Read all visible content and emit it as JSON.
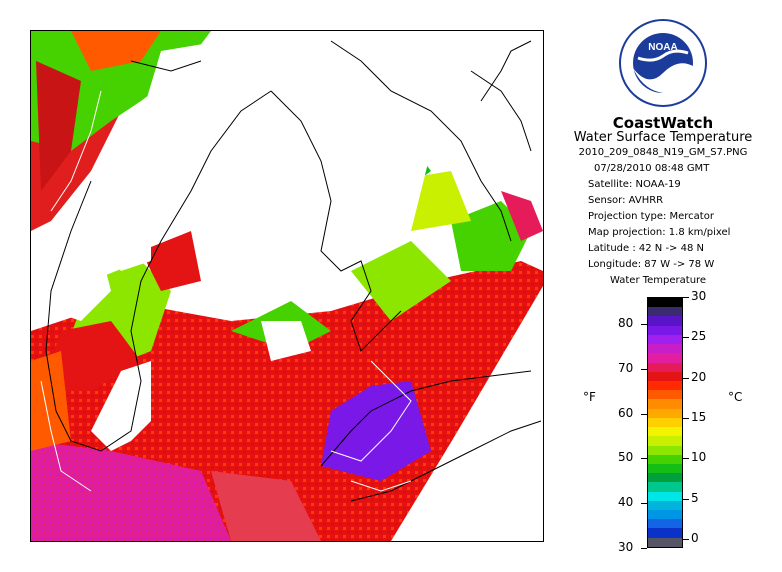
{
  "brand": "CoastWatch",
  "product": "Water Surface Temperature",
  "filename": "2010_209_0848_N19_GM_S7.PNG",
  "datetime": "07/28/2010    08:48 GMT",
  "satellite": "Satellite: NOAA-19",
  "sensor": "Sensor: AVHRR",
  "projection_type": "Projection type:  Mercator",
  "map_projection": "Map projection: 1.8 km/pixel",
  "latitude": "Latitude : 42 N -> 48 N",
  "longitude": "Longitude: 87 W -> 78 W",
  "legend": {
    "title": "Water Temperature",
    "unit_f": "°F",
    "unit_c": "°C",
    "ticks_f": [
      "30",
      "40",
      "50",
      "60",
      "70",
      "80"
    ],
    "ticks_c": [
      "0",
      "5",
      "10",
      "15",
      "20",
      "25",
      "30"
    ],
    "colors": [
      "#000000",
      "#3a2a6e",
      "#5a14c8",
      "#7a18e8",
      "#a020f0",
      "#c81ec8",
      "#e41ea0",
      "#e61c5a",
      "#e41414",
      "#ff2a00",
      "#ff5a00",
      "#ff8c00",
      "#ffa800",
      "#ffd000",
      "#f4f400",
      "#c8f000",
      "#8ce600",
      "#46d200",
      "#14be14",
      "#00a03c",
      "#00c88c",
      "#00e6e6",
      "#00b4dc",
      "#0096e6",
      "#1464e6",
      "#0a32c8",
      "#555566"
    ]
  },
  "logo_text": "NOAA"
}
